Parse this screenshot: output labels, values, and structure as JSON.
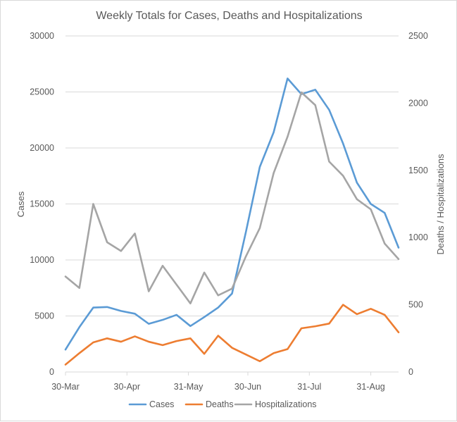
{
  "chart_data": {
    "type": "line",
    "title": "Weekly Totals for Cases, Deaths and Hospitalizations",
    "ylabel_left": "Cases",
    "ylabel_right": "Deaths / Hospitalizations",
    "ylim_left": [
      0,
      30000
    ],
    "ylim_right": [
      0,
      2500
    ],
    "yticks_left": [
      "0",
      "5000",
      "10000",
      "15000",
      "20000",
      "25000",
      "30000"
    ],
    "yticks_right": [
      "0",
      "500",
      "1000",
      "1500",
      "2000",
      "2500"
    ],
    "xticks": [
      "30-Mar",
      "30-Apr",
      "31-May",
      "30-Jun",
      "31-Jul",
      "31-Aug"
    ],
    "xtick_dates": [
      "2020-03-30",
      "2020-04-30",
      "2020-05-31",
      "2020-06-30",
      "2020-07-31",
      "2020-08-31"
    ],
    "x": [
      "2020-03-30",
      "2020-04-06",
      "2020-04-13",
      "2020-04-20",
      "2020-04-27",
      "2020-05-04",
      "2020-05-11",
      "2020-05-18",
      "2020-05-25",
      "2020-06-01",
      "2020-06-08",
      "2020-06-15",
      "2020-06-22",
      "2020-06-29",
      "2020-07-06",
      "2020-07-13",
      "2020-07-20",
      "2020-07-27",
      "2020-08-03",
      "2020-08-10",
      "2020-08-17",
      "2020-08-24",
      "2020-08-31",
      "2020-09-07",
      "2020-09-14"
    ],
    "grid": true,
    "legend_position": "bottom",
    "series": [
      {
        "name": "Cases",
        "axis": "left",
        "color": "#5b9bd5",
        "values": [
          2000,
          4000,
          5750,
          5800,
          5450,
          5200,
          4300,
          4650,
          5100,
          4100,
          4900,
          5750,
          7000,
          12500,
          18300,
          21400,
          26200,
          24800,
          25200,
          23400,
          20400,
          16900,
          15000,
          14200,
          11100
        ]
      },
      {
        "name": "Deaths",
        "axis": "right",
        "color": "#ed7d31",
        "values": [
          55,
          140,
          220,
          250,
          225,
          265,
          225,
          200,
          230,
          250,
          135,
          270,
          180,
          130,
          80,
          140,
          170,
          325,
          340,
          360,
          500,
          430,
          470,
          425,
          295
        ]
      },
      {
        "name": "Hospitalizations",
        "axis": "right",
        "color": "#a5a5a5",
        "values": [
          710,
          625,
          1250,
          965,
          900,
          1030,
          600,
          790,
          650,
          510,
          740,
          570,
          620,
          860,
          1070,
          1480,
          1750,
          2080,
          1985,
          1565,
          1460,
          1285,
          1210,
          955,
          840
        ]
      }
    ]
  }
}
